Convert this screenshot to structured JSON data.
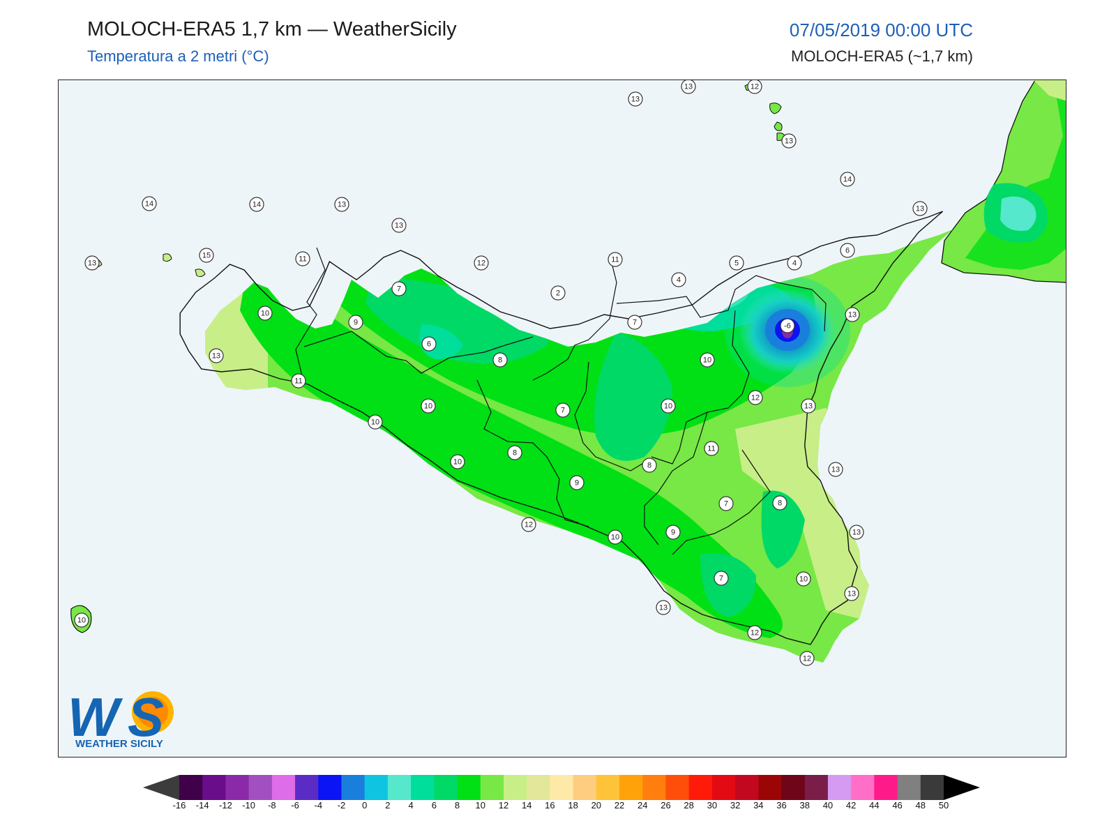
{
  "header": {
    "title": "MOLOCH-ERA5 1,7 km — WeatherSicily",
    "subtitle": "Temperatura a 2 metri (°C)",
    "datetime": "07/05/2019 00:00 UTC",
    "model": "MOLOCH-ERA5 (~1,7 km)"
  },
  "logo": {
    "mark": "WS",
    "text": "WEATHER SICILY"
  },
  "colors": {
    "sea": "#eef5f9",
    "land_warm": "#c8ee88",
    "land_mild": "#77e845",
    "land_core": "#00e014",
    "land_cool": "#00d966",
    "land_cold": "#55e8c0",
    "peak_cold": "#1f6ed8",
    "title_blue": "#1d5fb8"
  },
  "colorbar": {
    "ticks": [
      "-16",
      "-14",
      "-12",
      "-10",
      "-8",
      "-6",
      "-4",
      "-2",
      "0",
      "2",
      "4",
      "6",
      "8",
      "10",
      "12",
      "14",
      "16",
      "18",
      "20",
      "22",
      "24",
      "26",
      "28",
      "30",
      "32",
      "34",
      "36",
      "38",
      "40",
      "42",
      "44",
      "46",
      "48",
      "50"
    ],
    "colors": [
      "#41004a",
      "#6a0d8a",
      "#8a2aa8",
      "#a24fc1",
      "#dd6de8",
      "#5b2bc6",
      "#0a14f5",
      "#1a7fdc",
      "#0ec4e0",
      "#56e8cc",
      "#00de9c",
      "#00d966",
      "#00e014",
      "#77e845",
      "#c8ee88",
      "#e2e79a",
      "#ffe9a8",
      "#ffcd80",
      "#ffc33a",
      "#ffa20a",
      "#ff7e0e",
      "#ff4e0a",
      "#ff1a0a",
      "#e30a14",
      "#c2081e",
      "#9c0505",
      "#6e0518",
      "#7a1e49",
      "#d59af2",
      "#ff6fc8",
      "#ff1a8a",
      "#808080",
      "#3a3a3a"
    ],
    "under_color": "#3c3c3c",
    "over_color": "#000000"
  },
  "station_labels": [
    "13",
    "13",
    "12",
    "13",
    "14",
    "13",
    "14",
    "13",
    "13",
    "13",
    "15",
    "11",
    "12",
    "11",
    "5",
    "4",
    "6",
    "7",
    "2",
    "4",
    "13",
    "10",
    "9",
    "6",
    "8",
    "-6",
    "7",
    "10",
    "13",
    "11",
    "10",
    "7",
    "10",
    "12",
    "13",
    "10",
    "8",
    "11",
    "8",
    "13",
    "10",
    "9",
    "8",
    "7",
    "9",
    "13",
    "12",
    "10",
    "7",
    "10",
    "13",
    "12",
    "12",
    "13",
    "14",
    "10"
  ]
}
